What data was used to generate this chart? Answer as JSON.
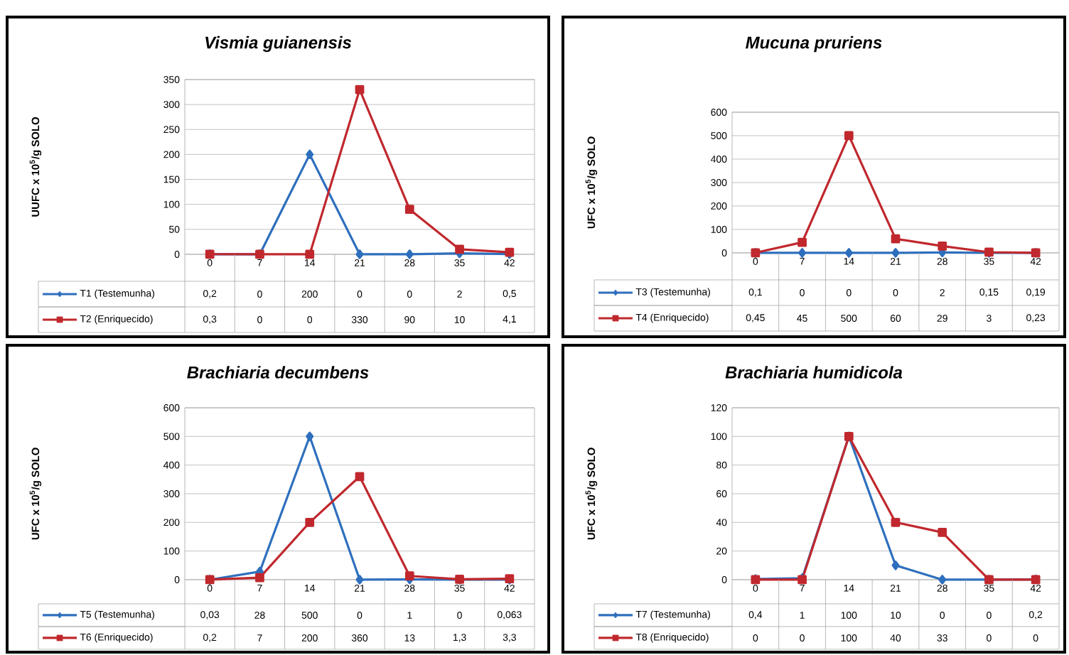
{
  "chart_data": [
    {
      "type": "line",
      "title": "Vismia guianensis",
      "ylabel": "UUFC x 10$^{5}$/g SOLO",
      "categories": [
        "0",
        "7",
        "14",
        "21",
        "28",
        "35",
        "42"
      ],
      "ylim": [
        0,
        350
      ],
      "yticks": [
        0,
        50,
        100,
        150,
        200,
        250,
        300,
        350
      ],
      "grid": "y",
      "legend": "bottom",
      "series": [
        {
          "name": "T1 (Testemunha)",
          "color": "#2e6fbd",
          "marker": "diamond",
          "values": [
            0.2,
            0,
            200,
            0,
            0,
            2,
            0.5
          ],
          "value_labels": [
            "0,2",
            "0",
            "200",
            "0",
            "0",
            "2",
            "0,5"
          ]
        },
        {
          "name": "T2 (Enriquecido)",
          "color": "#c0282d",
          "marker": "square",
          "values": [
            0.3,
            0,
            0,
            330,
            90,
            10,
            4.1
          ],
          "value_labels": [
            "0,3",
            "0",
            "0",
            "330",
            "90",
            "10",
            "4,1"
          ]
        }
      ]
    },
    {
      "type": "line",
      "title": "Mucuna pruriens",
      "ylabel": "UFC x 10$^{5}$/g SOLO",
      "categories": [
        "0",
        "7",
        "14",
        "21",
        "28",
        "35",
        "42"
      ],
      "ylim": [
        0,
        600
      ],
      "yticks": [
        0,
        100,
        200,
        300,
        400,
        500,
        600
      ],
      "grid": "y",
      "legend": "bottom",
      "series": [
        {
          "name": "T3 (Testemunha)",
          "color": "#2e6fbd",
          "marker": "diamond",
          "values": [
            0.1,
            0,
            0,
            0,
            2,
            0.15,
            0.19
          ],
          "value_labels": [
            "0,1",
            "0",
            "0",
            "0",
            "2",
            "0,15",
            "0,19"
          ]
        },
        {
          "name": "T4 (Enriquecido)",
          "color": "#c0282d",
          "marker": "square",
          "values": [
            0.45,
            45,
            500,
            60,
            29,
            3,
            0.23
          ],
          "value_labels": [
            "0,45",
            "45",
            "500",
            "60",
            "29",
            "3",
            "0,23"
          ]
        }
      ]
    },
    {
      "type": "line",
      "title": "Brachiaria decumbens",
      "ylabel": "UFC x 10$^{5}$/g SOLO",
      "categories": [
        "0",
        "7",
        "14",
        "21",
        "28",
        "35",
        "42"
      ],
      "ylim": [
        0,
        600
      ],
      "yticks": [
        0,
        100,
        200,
        300,
        400,
        500,
        600
      ],
      "grid": "y",
      "legend": "bottom",
      "series": [
        {
          "name": "T5 (Testemunha)",
          "color": "#2e6fbd",
          "marker": "diamond",
          "values": [
            0.03,
            28,
            500,
            0,
            1,
            0,
            0.063
          ],
          "value_labels": [
            "0,03",
            "28",
            "500",
            "0",
            "1",
            "0",
            "0,063"
          ]
        },
        {
          "name": "T6 (Enriquecido)",
          "color": "#c0282d",
          "marker": "square",
          "values": [
            0.2,
            7,
            200,
            360,
            13,
            1.3,
            3.3
          ],
          "value_labels": [
            "0,2",
            "7",
            "200",
            "360",
            "13",
            "1,3",
            "3,3"
          ]
        }
      ]
    },
    {
      "type": "line",
      "title": "Brachiaria humidicola",
      "ylabel": "UFC x 10$^{5}$/g SOLO",
      "categories": [
        "0",
        "7",
        "14",
        "21",
        "28",
        "35",
        "42"
      ],
      "ylim": [
        0,
        120
      ],
      "yticks": [
        0,
        20,
        40,
        60,
        80,
        100,
        120
      ],
      "grid": "y",
      "legend": "bottom",
      "series": [
        {
          "name": "T7 (Testemunha)",
          "color": "#2e6fbd",
          "marker": "diamond",
          "values": [
            0.4,
            1,
            100,
            10,
            0,
            0,
            0.2
          ],
          "value_labels": [
            "0,4",
            "1",
            "100",
            "10",
            "0",
            "0",
            "0,2"
          ]
        },
        {
          "name": "T8 (Enriquecido)",
          "color": "#c0282d",
          "marker": "square",
          "values": [
            0,
            0,
            100,
            40,
            33,
            0,
            0
          ],
          "value_labels": [
            "0",
            "0",
            "100",
            "40",
            "33",
            "0",
            "0"
          ]
        }
      ]
    }
  ]
}
